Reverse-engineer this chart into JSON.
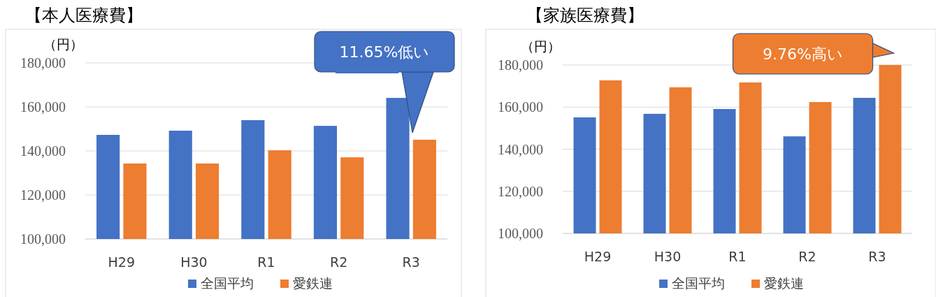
{
  "chart_data": [
    {
      "type": "bar",
      "title": "【本人医療費】",
      "ylabel": "（円）",
      "categories": [
        "H29",
        "H30",
        "R1",
        "R2",
        "R3"
      ],
      "series": [
        {
          "name": "全国平均",
          "color": "#4472c4",
          "values": [
            147300,
            149200,
            154000,
            151400,
            164100
          ]
        },
        {
          "name": "愛鉄連",
          "color": "#ed7d31",
          "values": [
            134300,
            134300,
            140300,
            137100,
            145100
          ]
        }
      ],
      "ylim": [
        100000,
        180000
      ],
      "yticks": [
        {
          "value": 100000,
          "label": "100,000"
        },
        {
          "value": 120000,
          "label": "120,000"
        },
        {
          "value": 140000,
          "label": "140,000"
        },
        {
          "value": 160000,
          "label": "160,000"
        },
        {
          "value": 180000,
          "label": "180,000"
        }
      ],
      "grid": "y",
      "legend": "bottom",
      "annotations": [
        "11.65%低い"
      ]
    },
    {
      "type": "bar",
      "title": "【家族医療費】",
      "ylabel": "（円）",
      "categories": [
        "H29",
        "H30",
        "R1",
        "R2",
        "R3"
      ],
      "series": [
        {
          "name": "全国平均",
          "color": "#4472c4",
          "values": [
            155100,
            156800,
            159100,
            146100,
            164400
          ]
        },
        {
          "name": "愛鉄連",
          "color": "#ed7d31",
          "values": [
            172700,
            169400,
            171700,
            162400,
            180000
          ]
        }
      ],
      "ylim": [
        100000,
        180000
      ],
      "yticks": [
        {
          "value": 100000,
          "label": "100,000"
        },
        {
          "value": 120000,
          "label": "120,000"
        },
        {
          "value": 140000,
          "label": "140,000"
        },
        {
          "value": 160000,
          "label": "160,000"
        },
        {
          "value": 180000,
          "label": "180,000"
        }
      ],
      "grid": "y",
      "legend": "bottom",
      "annotations": [
        {
          "text": "9.76%高い",
          "x": "R3",
          "y": 180000
        }
      ]
    }
  ]
}
